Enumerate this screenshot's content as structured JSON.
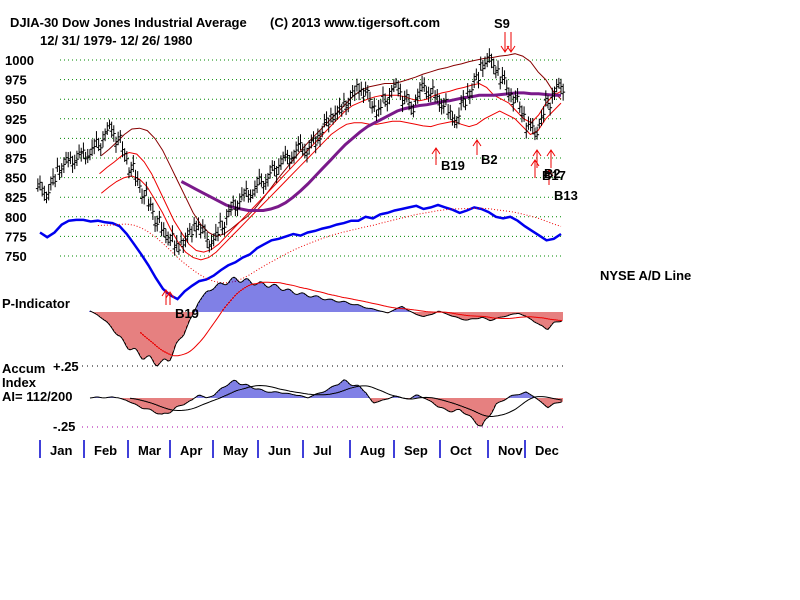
{
  "chart_data": {
    "type": "line",
    "title": "DJIA-30  Dow Jones Industrial Average",
    "subtitle": "12/ 31/ 1979- 12/ 26/ 1980",
    "copyright": "(C) 2013 www.tigersoft.com",
    "price_panel": {
      "series_type": "ohlc",
      "y_ticks": [
        "1000",
        "975",
        "950",
        "925",
        "900",
        "875",
        "850",
        "825",
        "800",
        "775",
        "750"
      ],
      "y_tick_values": [
        1000,
        975,
        950,
        925,
        900,
        875,
        850,
        825,
        800,
        775,
        750
      ],
      "ylim": [
        745,
        1010
      ],
      "grid": true,
      "close_by_month": {
        "months": [
          "Jan",
          "Feb",
          "Mar",
          "Apr",
          "May",
          "Jun",
          "Jul",
          "Aug",
          "Sep",
          "Oct",
          "Nov",
          "Dec"
        ],
        "approx_close": [
          876,
          868,
          786,
          817,
          851,
          868,
          935,
          933,
          932,
          925,
          993,
          958
        ]
      },
      "close_path": [
        838,
        830,
        845,
        862,
        870,
        872,
        878,
        880,
        885,
        893,
        905,
        912,
        898,
        880,
        862,
        845,
        830,
        812,
        795,
        780,
        775,
        760,
        770,
        778,
        790,
        782,
        768,
        775,
        790,
        805,
        815,
        825,
        830,
        835,
        845,
        850,
        860,
        870,
        875,
        880,
        890,
        885,
        895,
        905,
        920,
        930,
        935,
        945,
        955,
        965,
        958,
        945,
        935,
        950,
        960,
        965,
        950,
        940,
        955,
        965,
        960,
        950,
        945,
        930,
        925,
        945,
        960,
        975,
        995,
        1000,
        990,
        975,
        960,
        950,
        935,
        915,
        910,
        925,
        945,
        960,
        965
      ],
      "upper_band": [
        null,
        null,
        null,
        null,
        null,
        null,
        null,
        null,
        878,
        886,
        895,
        905,
        912,
        913,
        910,
        900,
        885,
        865,
        845,
        825,
        805,
        790,
        780,
        775,
        778,
        785,
        793,
        800,
        810,
        822,
        835,
        848,
        860,
        872,
        884,
        895,
        905,
        915,
        925,
        935,
        945,
        955,
        962,
        966,
        968,
        970,
        970,
        972,
        975,
        978,
        982,
        985,
        988,
        990,
        993,
        995,
        998,
        1000,
        1002,
        1003,
        1005,
        1006,
        1008,
        1005,
        998,
        985,
        975,
        960,
        950
      ],
      "mid_band": [
        null,
        null,
        null,
        null,
        null,
        null,
        null,
        null,
        855,
        863,
        870,
        878,
        882,
        880,
        870,
        855,
        835,
        815,
        795,
        780,
        765,
        757,
        755,
        758,
        765,
        775,
        785,
        795,
        805,
        815,
        825,
        835,
        845,
        855,
        865,
        875,
        885,
        895,
        905,
        915,
        925,
        935,
        942,
        946,
        950,
        953,
        955,
        955,
        955,
        953,
        950,
        948,
        950,
        955,
        958,
        960,
        963,
        965,
        968,
        970,
        965,
        955,
        950,
        945,
        935,
        925,
        920,
        930,
        945,
        955,
        960
      ],
      "lower_band": [
        null,
        null,
        null,
        null,
        null,
        null,
        null,
        null,
        830,
        838,
        845,
        850,
        852,
        848,
        838,
        822,
        805,
        785,
        768,
        755,
        748,
        745,
        748,
        755,
        765,
        775,
        785,
        795,
        805,
        815,
        825,
        835,
        845,
        855,
        865,
        875,
        885,
        895,
        905,
        912,
        918,
        920,
        920,
        918,
        918,
        920,
        922,
        922,
        920,
        918,
        916,
        915,
        918,
        920,
        922,
        918,
        915,
        918,
        925,
        930,
        935,
        930,
        925,
        915,
        905,
        910,
        925,
        935,
        945
      ],
      "ma_purple": [
        null,
        null,
        null,
        null,
        null,
        null,
        null,
        null,
        null,
        null,
        null,
        null,
        null,
        null,
        null,
        null,
        null,
        null,
        null,
        845,
        840,
        835,
        830,
        825,
        820,
        815,
        812,
        810,
        808,
        808,
        808,
        810,
        813,
        818,
        825,
        833,
        842,
        852,
        862,
        872,
        882,
        892,
        900,
        908,
        915,
        920,
        925,
        930,
        935,
        938,
        940,
        942,
        943,
        945,
        947,
        948,
        950,
        952,
        953,
        955,
        955,
        955,
        956,
        957,
        958,
        958,
        957,
        957,
        956,
        955,
        955
      ]
    },
    "ad_line": {
      "label": "NYSE A/D Line",
      "color": "#0000ee",
      "path_relative": [
        780,
        774,
        780,
        790,
        795,
        796,
        796,
        794,
        795,
        793,
        792,
        788,
        778,
        765,
        752,
        738,
        722,
        708,
        700,
        695,
        705,
        712,
        718,
        720,
        725,
        732,
        738,
        742,
        748,
        752,
        760,
        765,
        770,
        772,
        775,
        778,
        776,
        780,
        782,
        785,
        787,
        790,
        792,
        795,
        795,
        800,
        798,
        803,
        805,
        808,
        810,
        812,
        814,
        810,
        812,
        815,
        812,
        809,
        805,
        808,
        812,
        810,
        806,
        800,
        798,
        800,
        795,
        788,
        782,
        776,
        770,
        772,
        778
      ],
      "ma_color": "#ee0000"
    },
    "p_indicator": {
      "label": "P-Indicator",
      "positive_color": "#0000cc",
      "negative_color": "#cc0000",
      "values": [
        0.02,
        -0.05,
        -0.15,
        -0.28,
        -0.45,
        -0.6,
        -0.7,
        -0.78,
        -0.85,
        -0.9,
        -0.95,
        -0.82,
        -0.6,
        -0.35,
        -0.1,
        0.2,
        0.35,
        0.45,
        0.5,
        0.55,
        0.6,
        0.58,
        0.55,
        0.52,
        0.5,
        0.48,
        0.45,
        0.4,
        0.36,
        0.33,
        0.3,
        0.28,
        0.25,
        0.22,
        0.2,
        0.18,
        0.15,
        0.12,
        0.08,
        0.05,
        0.02,
        -0.02,
        0.05,
        0.1,
        0.02,
        -0.05,
        -0.08,
        -0.05,
        0.02,
        -0.03,
        -0.08,
        -0.12,
        -0.15,
        -0.12,
        -0.1,
        -0.15,
        -0.12,
        -0.08,
        -0.05,
        -0.02,
        -0.08,
        -0.15,
        -0.25,
        -0.3,
        -0.2,
        -0.15
      ]
    },
    "accum_index": {
      "label": "Accum Index",
      "ai_label": "AI= 112/200",
      "top_tick": "+.25",
      "bottom_tick": "-.25",
      "ylim": [
        -0.25,
        0.25
      ],
      "values": [
        0.0,
        0.01,
        0.0,
        0.01,
        0.0,
        -0.02,
        -0.05,
        -0.08,
        -0.1,
        -0.12,
        -0.15,
        -0.12,
        -0.08,
        -0.05,
        -0.02,
        0.03,
        0.0,
        0.02,
        0.08,
        0.12,
        0.15,
        0.12,
        0.1,
        0.08,
        0.06,
        0.05,
        0.05,
        0.04,
        0.03,
        0.02,
        0.0,
        0.03,
        0.05,
        0.08,
        0.12,
        0.15,
        0.12,
        0.1,
        0.05,
        -0.05,
        -0.02,
        -0.01,
        0.02,
        0.0,
        -0.01,
        0.03,
        0.0,
        -0.03,
        -0.08,
        -0.1,
        -0.12,
        -0.1,
        -0.15,
        -0.2,
        -0.25,
        -0.15,
        -0.05,
        -0.02,
        0.02,
        0.03,
        0.05,
        0.02,
        -0.03,
        -0.08,
        -0.05,
        -0.03
      ]
    },
    "x_tick_labels": [
      "Jan",
      "Feb",
      "Mar",
      "Apr",
      "May",
      "Jun",
      "Jul",
      "Aug",
      "Sep",
      "Oct",
      "Nov",
      "Dec"
    ],
    "signals": [
      {
        "label": "S9",
        "type": "sell",
        "month_pos": 10.55
      },
      {
        "label": "B19",
        "type": "buy",
        "month_pos": 2.9,
        "panel": "p_indicator"
      },
      {
        "label": "B19",
        "type": "buy",
        "month_pos": 9.1
      },
      {
        "label": "B2",
        "type": "buy",
        "month_pos": 9.9
      },
      {
        "label": "B2",
        "type": "buy",
        "month_pos": 11.4
      },
      {
        "label": "B17",
        "type": "buy",
        "month_pos": 11.3
      },
      {
        "label": "B13",
        "type": "buy",
        "month_pos": 11.5
      }
    ]
  }
}
